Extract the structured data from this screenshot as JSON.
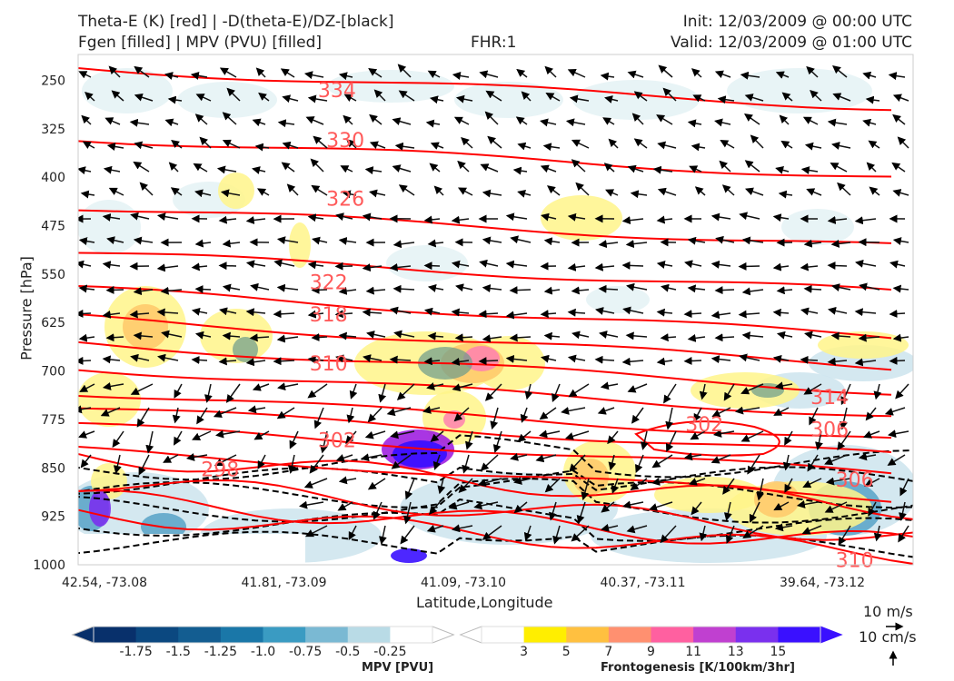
{
  "header": {
    "title_left_1": "Theta-E (K) [red] | -D(theta-E)/DZ-[black]",
    "title_left_2": "Fgen [filled] | MPV (PVU) [filled]",
    "title_center": "FHR:1",
    "title_right_1": "Init: 12/03/2009 @ 00:00 UTC",
    "title_right_2": "Valid: 12/03/2009 @ 01:00 UTC"
  },
  "chart_data": {
    "type": "cross-section",
    "ylabel": "Pressure [hPa]",
    "xlabel": "Latitude,Longitude",
    "y_ticks": [
      "250",
      "325",
      "400",
      "475",
      "550",
      "625",
      "700",
      "775",
      "850",
      "925",
      "1000"
    ],
    "y_tick_values": [
      250,
      325,
      400,
      475,
      550,
      625,
      700,
      775,
      850,
      925,
      1000
    ],
    "ylim": [
      210,
      1000
    ],
    "x_ticks": [
      "42.54, -73.08",
      "41.81, -73.09",
      "41.09, -73.10",
      "40.37, -73.11",
      "39.64, -73.12"
    ],
    "theta_e_contour_labels": [
      {
        "label": "334",
        "x": 0.31,
        "p": 265
      },
      {
        "label": "330",
        "x": 0.32,
        "p": 342
      },
      {
        "label": "326",
        "x": 0.32,
        "p": 433
      },
      {
        "label": "322",
        "x": 0.3,
        "p": 562
      },
      {
        "label": "318",
        "x": 0.3,
        "p": 612
      },
      {
        "label": "310",
        "x": 0.3,
        "p": 688
      },
      {
        "label": "302",
        "x": 0.31,
        "p": 807
      },
      {
        "label": "298",
        "x": 0.17,
        "p": 852
      },
      {
        "label": "302",
        "x": 0.75,
        "p": 782
      },
      {
        "label": "314",
        "x": 0.9,
        "p": 740
      },
      {
        "label": "306",
        "x": 0.9,
        "p": 790
      },
      {
        "label": "306",
        "x": 0.93,
        "p": 868
      },
      {
        "label": "310",
        "x": 0.93,
        "p": 992
      }
    ],
    "theta_e_color": "#ff0000",
    "stability_contour_color": "#000000",
    "mpv_colorbar": {
      "title": "MPV [PVU]",
      "ticks": [
        "-1.75",
        "-1.5",
        "-1.25",
        "-1.0",
        "-0.75",
        "-0.5",
        "-0.25"
      ],
      "colors": [
        "#08306b",
        "#0b4880",
        "#135d91",
        "#1a77a8",
        "#3a9bc2",
        "#7ab9d3",
        "#b9dbe6",
        "#ffffff"
      ]
    },
    "fgen_colorbar": {
      "title": "Frontogenesis [K/100km/3hr]",
      "ticks": [
        "3",
        "5",
        "7",
        "9",
        "11",
        "13",
        "15"
      ],
      "colors": [
        "#ffffff",
        "#ffee00",
        "#ffc040",
        "#ff9070",
        "#ff60a0",
        "#c040d0",
        "#7a30ee",
        "#3a10ff"
      ]
    },
    "vector_reference": {
      "horizontal": "10 m/s",
      "vertical": "10 cm/s"
    }
  }
}
